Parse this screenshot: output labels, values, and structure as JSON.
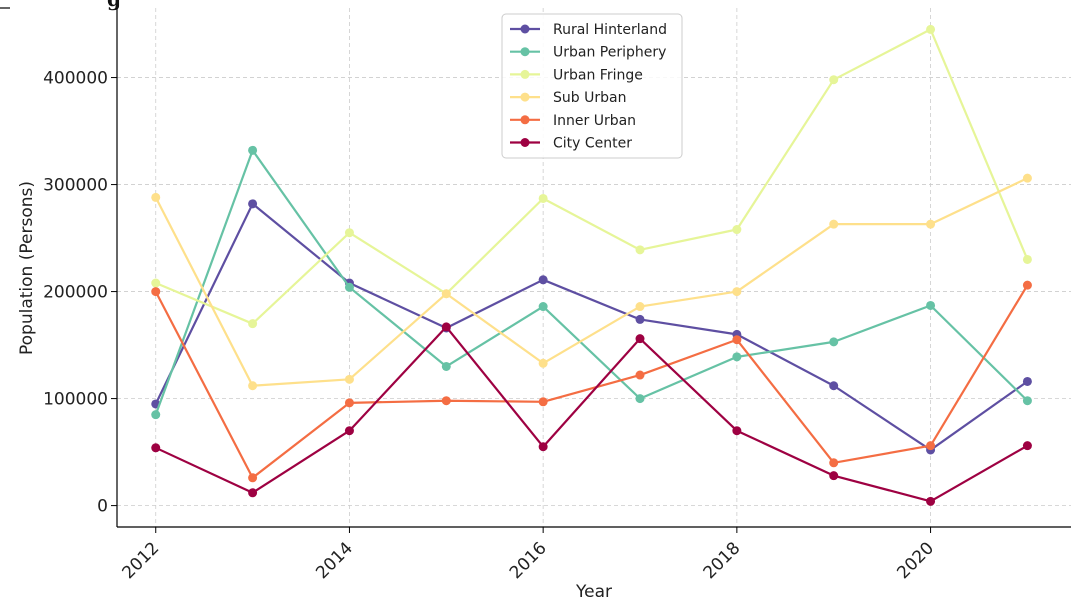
{
  "chart_data": {
    "type": "line",
    "title": "g",
    "xlabel": "Year",
    "ylabel": "Population (Persons)",
    "x": [
      2012,
      2013,
      2014,
      2015,
      2016,
      2017,
      2018,
      2019,
      2020,
      2021
    ],
    "x_ticks": [
      "2012",
      "2014",
      "2016",
      "2018",
      "2020"
    ],
    "y_ticks": [
      "0",
      "100000",
      "200000",
      "300000",
      "400000"
    ],
    "xlim": [
      2011.6,
      2021.45
    ],
    "ylim": [
      -20000,
      465000
    ],
    "grid": true,
    "legend_position": "top-center",
    "series": [
      {
        "name": "Rural Hinterland",
        "color": "#5e4fa2",
        "values": [
          95000,
          282000,
          208000,
          166000,
          211000,
          174000,
          160000,
          112000,
          52000,
          116000
        ]
      },
      {
        "name": "Urban Periphery",
        "color": "#66c2a5",
        "values": [
          85000,
          332000,
          204000,
          130000,
          186000,
          100000,
          139000,
          153000,
          187000,
          98000
        ]
      },
      {
        "name": "Urban Fringe",
        "color": "#e6f598",
        "values": [
          208000,
          170000,
          255000,
          198000,
          287000,
          239000,
          258000,
          398000,
          445000,
          230000
        ]
      },
      {
        "name": "Sub Urban",
        "color": "#fee08b",
        "values": [
          288000,
          112000,
          118000,
          198000,
          133000,
          186000,
          200000,
          263000,
          263000,
          306000
        ]
      },
      {
        "name": "Inner Urban",
        "color": "#f46d43",
        "values": [
          200000,
          26000,
          96000,
          98000,
          97000,
          122000,
          155000,
          40000,
          56000,
          206000
        ]
      },
      {
        "name": "City Center",
        "color": "#9e0142",
        "values": [
          54000,
          12000,
          70000,
          167000,
          55000,
          156000,
          70000,
          28000,
          4000,
          56000
        ]
      }
    ]
  }
}
